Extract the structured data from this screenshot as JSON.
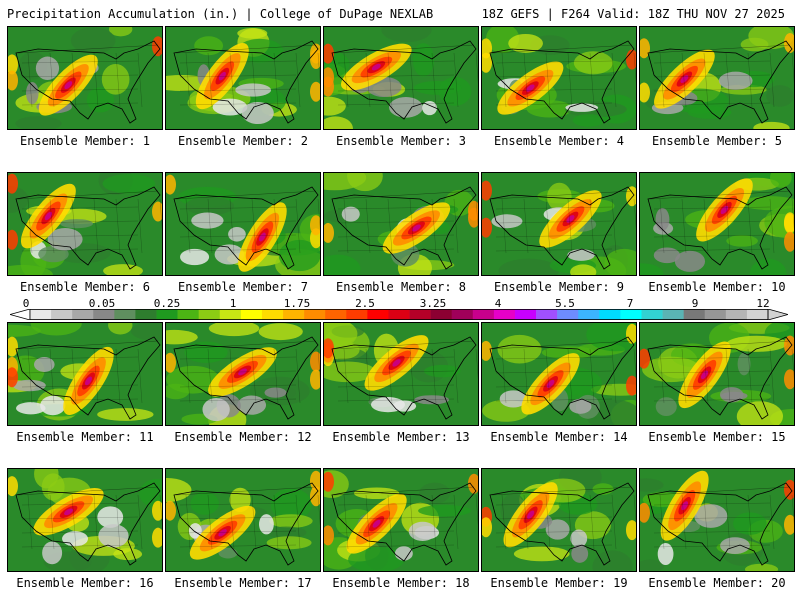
{
  "header": {
    "title": "Precipitation Accumulation (in.) | College of DuPage NEXLAB",
    "run_info": "18Z GEFS | F264 Valid: 18Z THU NOV 27 2025"
  },
  "members": [
    {
      "label": "Ensemble Member: 1"
    },
    {
      "label": "Ensemble Member: 2"
    },
    {
      "label": "Ensemble Member: 3"
    },
    {
      "label": "Ensemble Member: 4"
    },
    {
      "label": "Ensemble Member: 5"
    },
    {
      "label": "Ensemble Member: 6"
    },
    {
      "label": "Ensemble Member: 7"
    },
    {
      "label": "Ensemble Member: 8"
    },
    {
      "label": "Ensemble Member: 9"
    },
    {
      "label": "Ensemble Member: 10"
    },
    {
      "label": "Ensemble Member: 11"
    },
    {
      "label": "Ensemble Member: 12"
    },
    {
      "label": "Ensemble Member: 13"
    },
    {
      "label": "Ensemble Member: 14"
    },
    {
      "label": "Ensemble Member: 15"
    },
    {
      "label": "Ensemble Member: 16"
    },
    {
      "label": "Ensemble Member: 17"
    },
    {
      "label": "Ensemble Member: 18"
    },
    {
      "label": "Ensemble Member: 19"
    },
    {
      "label": "Ensemble Member: 20"
    }
  ],
  "colorbar": {
    "labels": [
      "0",
      "0.05",
      "0.25",
      "1",
      "1.75",
      "2.5",
      "3.25",
      "4",
      "5.5",
      "7",
      "9",
      "12"
    ],
    "colors": [
      "#e8e8e8",
      "#c8c8c8",
      "#a8a8a8",
      "#888888",
      "#5f8f5f",
      "#2e7d2e",
      "#1f9a1f",
      "#4cb414",
      "#8ccc14",
      "#c8e614",
      "#ffff00",
      "#ffdc00",
      "#ffb400",
      "#ff8c00",
      "#ff6400",
      "#ff3c00",
      "#ff0000",
      "#dc0014",
      "#b40028",
      "#8c0032",
      "#a0005a",
      "#c8008c",
      "#e600c8",
      "#c800ff",
      "#a050ff",
      "#6e8cff",
      "#3cb4ff",
      "#00dcff",
      "#00ffff",
      "#32d2d2",
      "#5ab4b4",
      "#787878",
      "#969696",
      "#b4b4b4",
      "#d2d2d2"
    ]
  }
}
